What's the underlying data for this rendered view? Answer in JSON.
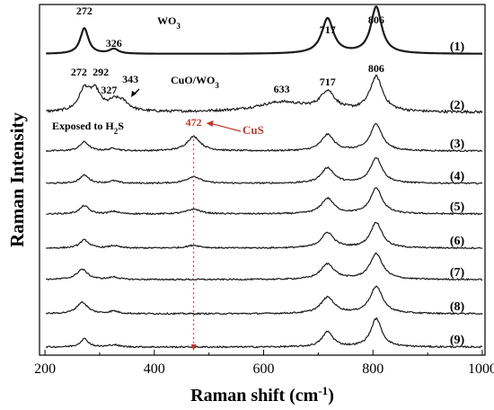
{
  "chart_data": {
    "type": "line",
    "xlabel": "Raman shift (cm",
    "xlabel_sup": "-1",
    "xlabel_end": ")",
    "ylabel": "Raman Intensity",
    "xlim": [
      190,
      1005
    ],
    "x_ticks": [
      200,
      400,
      600,
      800,
      1000
    ],
    "y_ticks_shown": false,
    "grid": false,
    "legend": "none",
    "series": [
      {
        "name": "(1)",
        "tag": "WO",
        "tag_sub": "3",
        "peak_labels": [
          "272",
          "326",
          "717",
          "806"
        ],
        "peaks": [
          {
            "x": 272,
            "h": 0.55,
            "w": 9
          },
          {
            "x": 326,
            "h": 0.1,
            "w": 10
          },
          {
            "x": 717,
            "h": 0.75,
            "w": 13
          },
          {
            "x": 806,
            "h": 1.0,
            "w": 12
          }
        ],
        "noise": 0.0
      },
      {
        "name": "(2)",
        "tag": "CuO/WO",
        "tag_sub": "3",
        "peak_labels": [
          "272",
          "292",
          "327",
          "343",
          "633",
          "717",
          "806"
        ],
        "peaks": [
          {
            "x": 272,
            "h": 0.42,
            "w": 12
          },
          {
            "x": 292,
            "h": 0.38,
            "w": 12
          },
          {
            "x": 327,
            "h": 0.18,
            "w": 14
          },
          {
            "x": 343,
            "h": 0.15,
            "w": 14
          },
          {
            "x": 633,
            "h": 0.2,
            "w": 55
          },
          {
            "x": 717,
            "h": 0.38,
            "w": 16
          },
          {
            "x": 806,
            "h": 0.7,
            "w": 14
          }
        ],
        "noise": 0.05
      },
      {
        "name": "(3)",
        "tag": "Exposed to H",
        "tag_sub": "2",
        "tag_end": "S",
        "peak_labels": [
          "472"
        ],
        "peaks": [
          {
            "x": 272,
            "h": 0.25,
            "w": 10
          },
          {
            "x": 326,
            "h": 0.07,
            "w": 10
          },
          {
            "x": 472,
            "h": 0.4,
            "w": 15
          },
          {
            "x": 717,
            "h": 0.45,
            "w": 14
          },
          {
            "x": 806,
            "h": 0.75,
            "w": 13
          }
        ],
        "noise": 0.04
      },
      {
        "name": "(4)",
        "peaks": [
          {
            "x": 272,
            "h": 0.24,
            "w": 10
          },
          {
            "x": 326,
            "h": 0.07,
            "w": 10
          },
          {
            "x": 472,
            "h": 0.2,
            "w": 15
          },
          {
            "x": 717,
            "h": 0.45,
            "w": 14
          },
          {
            "x": 806,
            "h": 0.75,
            "w": 13
          }
        ],
        "noise": 0.04
      },
      {
        "name": "(5)",
        "peaks": [
          {
            "x": 272,
            "h": 0.24,
            "w": 10
          },
          {
            "x": 326,
            "h": 0.07,
            "w": 10
          },
          {
            "x": 472,
            "h": 0.14,
            "w": 15
          },
          {
            "x": 717,
            "h": 0.45,
            "w": 14
          },
          {
            "x": 806,
            "h": 0.75,
            "w": 13
          }
        ],
        "noise": 0.04
      },
      {
        "name": "(6)",
        "peaks": [
          {
            "x": 272,
            "h": 0.24,
            "w": 10
          },
          {
            "x": 326,
            "h": 0.07,
            "w": 10
          },
          {
            "x": 472,
            "h": 0.08,
            "w": 15
          },
          {
            "x": 717,
            "h": 0.45,
            "w": 14
          },
          {
            "x": 806,
            "h": 0.75,
            "w": 13
          }
        ],
        "noise": 0.04
      },
      {
        "name": "(7)",
        "peaks": [
          {
            "x": 268,
            "h": 0.3,
            "w": 12
          },
          {
            "x": 326,
            "h": 0.07,
            "w": 10
          },
          {
            "x": 717,
            "h": 0.45,
            "w": 15
          },
          {
            "x": 806,
            "h": 0.75,
            "w": 14
          }
        ],
        "noise": 0.04
      },
      {
        "name": "(8)",
        "peaks": [
          {
            "x": 268,
            "h": 0.32,
            "w": 12
          },
          {
            "x": 326,
            "h": 0.07,
            "w": 10
          },
          {
            "x": 717,
            "h": 0.45,
            "w": 15
          },
          {
            "x": 806,
            "h": 0.75,
            "w": 14
          }
        ],
        "noise": 0.04
      },
      {
        "name": "(9)",
        "peaks": [
          {
            "x": 272,
            "h": 0.22,
            "w": 9
          },
          {
            "x": 326,
            "h": 0.06,
            "w": 10
          },
          {
            "x": 717,
            "h": 0.4,
            "w": 12
          },
          {
            "x": 806,
            "h": 0.75,
            "w": 12
          }
        ],
        "noise": 0.04
      }
    ],
    "annotations": [
      {
        "text": "CuS",
        "points_to": 472,
        "color": "#c0392b"
      }
    ],
    "marker_line": {
      "x": 472,
      "color": "#c0392b",
      "style": "dotted"
    },
    "colors": {
      "line": "#1a1a1a",
      "highlight": "#c0392b",
      "axis": "#000000"
    }
  }
}
